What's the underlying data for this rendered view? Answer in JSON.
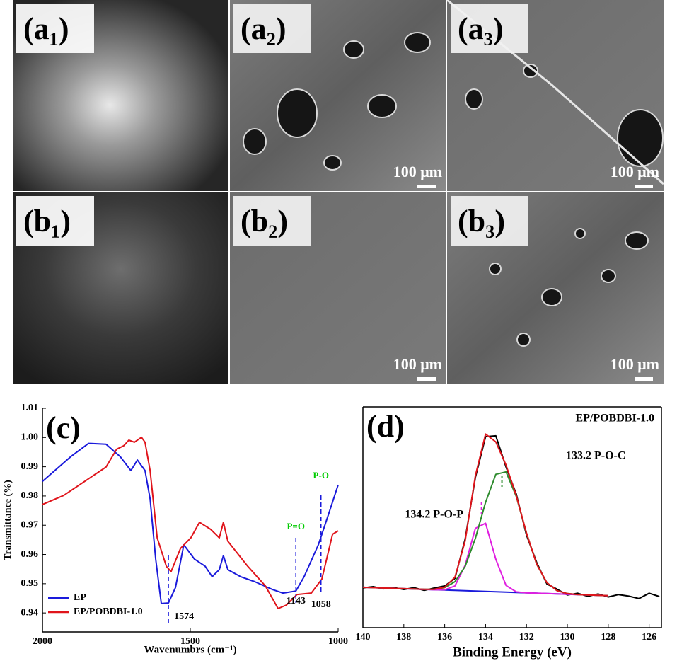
{
  "panels": [
    {
      "label": "(a₁)"
    },
    {
      "label": "(a₂)",
      "scale_bar": "100 μm"
    },
    {
      "label": "(a₃)",
      "scale_bar": "100 μm"
    },
    {
      "label": "(b₁)"
    },
    {
      "label": "(b₂)",
      "scale_bar": "100 μm"
    },
    {
      "label": "(b₃)",
      "scale_bar": "100 μm"
    }
  ],
  "chart_data": [
    {
      "type": "line",
      "panel_label": "(c)",
      "x_label": "Wavenumbrs (cm⁻¹)",
      "y_label": "Transmittance (%)",
      "xlim": [
        2000,
        1000
      ],
      "xticks": [
        2000,
        1500,
        1000
      ],
      "ylim": [
        0.9335,
        1.01
      ],
      "yticks": [
        0.94,
        0.95,
        0.96,
        0.97,
        0.98,
        0.99,
        {
          "value": 1,
          "label": "1.00"
        },
        1.01
      ],
      "legend": "lower left",
      "markers": [
        1574,
        1143,
        1058
      ],
      "notes": [
        {
          "text": "P=O",
          "x": 1143,
          "color": "#00cc00"
        },
        {
          "text": "P-O",
          "x": 1058,
          "color": "#00cc00"
        }
      ],
      "series": [
        {
          "name": "EP",
          "color": "#1a1adb",
          "x": [
            2000,
            1904,
            1844,
            1785,
            1737,
            1701,
            1679,
            1653,
            1636,
            1617,
            1598,
            1574,
            1550,
            1522,
            1486,
            1450,
            1426,
            1402,
            1388,
            1373,
            1330,
            1282,
            1222,
            1187,
            1143,
            1115,
            1067,
            1031,
            1000
          ],
          "values": [
            0.985,
            0.9935,
            0.998,
            0.9977,
            0.9935,
            0.9887,
            0.9923,
            0.9887,
            0.979,
            0.9584,
            0.9432,
            0.9434,
            0.9487,
            0.9633,
            0.9584,
            0.956,
            0.9524,
            0.9548,
            0.9596,
            0.9548,
            0.9524,
            0.9507,
            0.948,
            0.9468,
            0.9475,
            0.9524,
            0.9633,
            0.9742,
            0.9838
          ]
        },
        {
          "name": "EP/POBDBI-1.0",
          "color": "#e0141b",
          "x": [
            2000,
            1928,
            1856,
            1785,
            1749,
            1725,
            1708,
            1689,
            1665,
            1653,
            1636,
            1612,
            1581,
            1565,
            1533,
            1498,
            1469,
            1431,
            1402,
            1388,
            1373,
            1306,
            1246,
            1203,
            1175,
            1139,
            1091,
            1055,
            1019,
            1000
          ],
          "values": [
            0.9771,
            0.9802,
            0.9851,
            0.9899,
            0.996,
            0.9972,
            0.9991,
            0.9984,
            1.0001,
            0.9984,
            0.9887,
            0.9657,
            0.956,
            0.9541,
            0.9621,
            0.9657,
            0.971,
            0.9686,
            0.9657,
            0.971,
            0.9645,
            0.956,
            0.9492,
            0.9415,
            0.9427,
            0.9463,
            0.9468,
            0.9516,
            0.9669,
            0.9681
          ]
        }
      ]
    },
    {
      "type": "line",
      "panel_label": "(d)",
      "title": "EP/POBDBI-1.0",
      "x_label": "Binding Energy (eV)",
      "xlim": [
        140,
        125.4
      ],
      "xticks": [
        140,
        138,
        136,
        134,
        132,
        130,
        128,
        126
      ],
      "ylim": [
        0,
        100
      ],
      "frame": true,
      "peaks": [
        {
          "x": 133.2,
          "label": "133.2 P-O-C",
          "color": "#2e8b2e"
        },
        {
          "x": 134.2,
          "label": "134.2 P-O-P",
          "color": "#e020e0"
        }
      ],
      "series": [
        {
          "color": "#000000",
          "x": [
            140,
            139.5,
            139,
            138.5,
            138,
            137.5,
            137,
            136.5,
            136,
            135.5,
            135,
            134.5,
            134,
            133.5,
            133,
            132.5,
            132,
            131.5,
            131,
            130.5,
            130,
            129.5,
            129,
            128.5,
            128,
            127.5,
            127,
            126.5,
            126,
            125.5
          ],
          "values": [
            18.0,
            18.6,
            17.6,
            18.2,
            17.3,
            18.1,
            16.9,
            18.0,
            18.9,
            22.3,
            40.1,
            68.0,
            86.5,
            86.9,
            72.8,
            60.5,
            42.0,
            29.5,
            19.8,
            17.4,
            14.8,
            15.6,
            14.2,
            15.3,
            13.9,
            15.0,
            14.3,
            13.2,
            15.6,
            14.1
          ]
        },
        {
          "color": "#1a1adb",
          "x": [
            140,
            139.5,
            139,
            138.5,
            138,
            137.5,
            137,
            136.5,
            136,
            135.5,
            135,
            134.5,
            134,
            133.5,
            133,
            132.5,
            132,
            131.5,
            131,
            130.5,
            130,
            129.5,
            129,
            128.5,
            128
          ],
          "values": [
            18.3,
            18.15,
            17.99,
            17.83,
            17.67,
            17.51,
            17.35,
            17.19,
            17.04,
            16.88,
            16.72,
            16.56,
            16.4,
            16.25,
            16.09,
            15.93,
            15.77,
            15.61,
            15.45,
            15.29,
            15.13,
            14.98,
            14.82,
            14.66,
            14.5
          ]
        },
        {
          "color": "#e020e0",
          "x": [
            140,
            139.5,
            139,
            138.5,
            138,
            137.5,
            137,
            136.5,
            136,
            135.5,
            135,
            134.5,
            134,
            133.5,
            133,
            132.5,
            132,
            131.5,
            131,
            130.5,
            130,
            129.5,
            129,
            128.5,
            128
          ],
          "values": [
            18.3,
            18.15,
            17.99,
            17.83,
            17.67,
            17.51,
            17.35,
            17.19,
            17.19,
            18.9,
            28.22,
            44.96,
            47.3,
            30.95,
            19.14,
            16.21,
            15.78,
            15.61,
            15.45,
            15.29,
            15.13,
            14.98,
            14.82,
            14.66,
            14.5
          ]
        },
        {
          "color": "#2e8b2e",
          "x": [
            140,
            139.5,
            139,
            138.5,
            138,
            137.5,
            137,
            136.5,
            136,
            135.5,
            135,
            134.5,
            134,
            133.5,
            133,
            132.5,
            132,
            131.5,
            131,
            130.5,
            130,
            129.5,
            129,
            128.5,
            128
          ],
          "values": [
            18.3,
            18.15,
            17.99,
            17.83,
            17.67,
            17.52,
            17.39,
            17.43,
            18.14,
            20.83,
            27.72,
            40.46,
            56.8,
            69.45,
            70.59,
            59.43,
            42.87,
            28.71,
            20.39,
            16.74,
            15.46,
            15.04,
            14.83,
            14.66,
            14.5
          ]
        },
        {
          "color": "#e0141b",
          "x": [
            140,
            139.5,
            139,
            138.5,
            138,
            137.5,
            137,
            136.5,
            136,
            135.5,
            135,
            134.5,
            134,
            133.5,
            133,
            132.5,
            132,
            131.5,
            131,
            130.5,
            130,
            129.5,
            129,
            128.5,
            128
          ],
          "values": [
            18.3,
            18.15,
            17.99,
            17.83,
            17.67,
            17.52,
            17.39,
            17.43,
            18.29,
            22.85,
            39.22,
            68.86,
            87.7,
            84.15,
            73.64,
            59.71,
            42.88,
            28.71,
            20.39,
            16.74,
            15.46,
            15.04,
            14.83,
            14.66,
            14.5
          ]
        }
      ]
    }
  ]
}
